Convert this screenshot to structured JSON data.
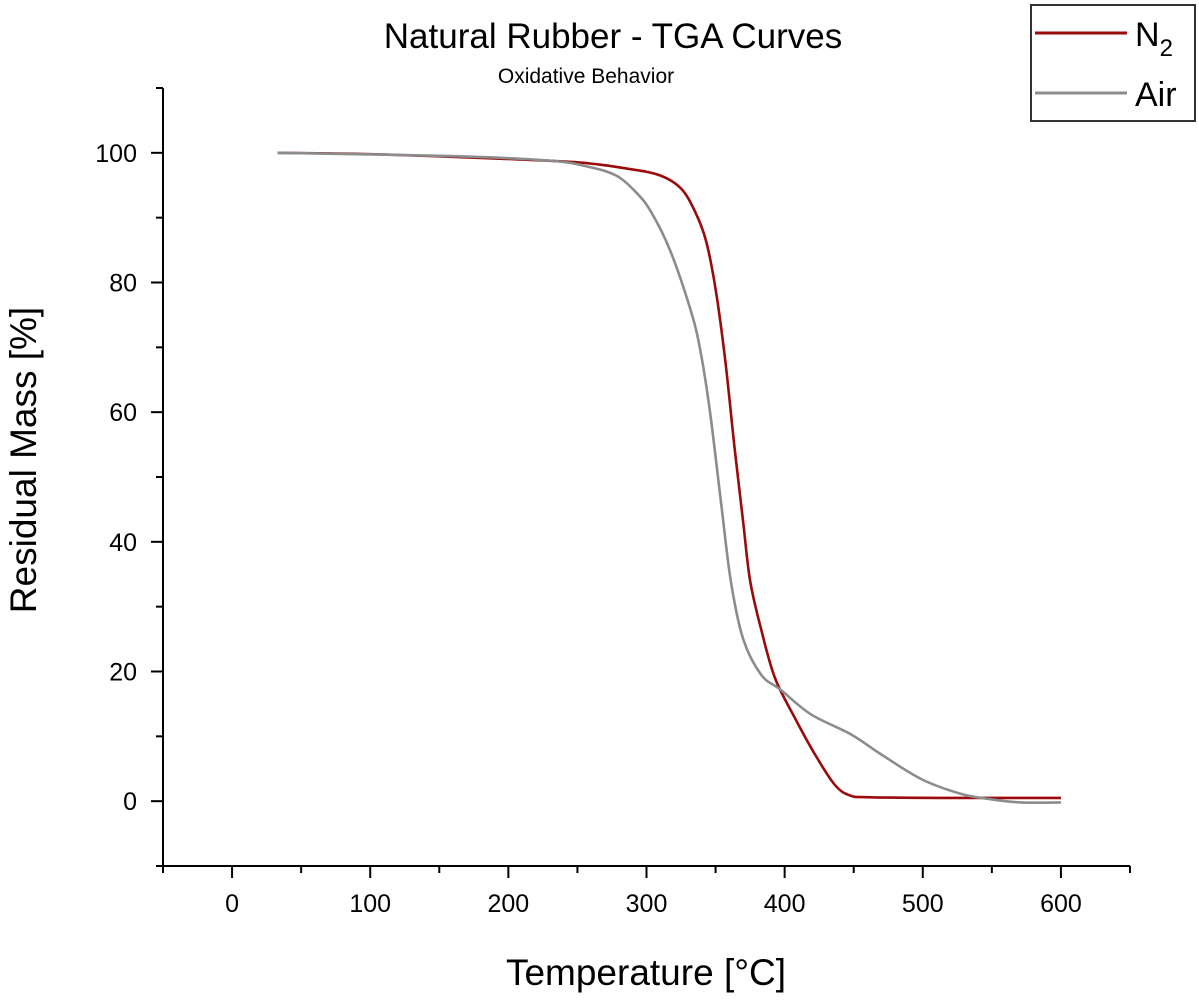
{
  "chart_data": {
    "type": "line",
    "title": "Natural Rubber - TGA Curves",
    "subtitle": "Oxidative Behavior",
    "xlabel": "Temperature [°C]",
    "ylabel": "Residual Mass [%]",
    "xlim": [
      -50,
      650
    ],
    "ylim": [
      -10,
      110
    ],
    "xticks": [
      0,
      100,
      200,
      300,
      400,
      500,
      600
    ],
    "yticks": [
      0,
      20,
      40,
      60,
      80,
      100
    ],
    "grid": false,
    "legend_position": "top-right",
    "series": [
      {
        "name": "N2",
        "label_main": "N",
        "label_sub": "2",
        "color": "#9b0a0a",
        "x": [
          33,
          100,
          194,
          252,
          288,
          310,
          325,
          335,
          343,
          350,
          357,
          364,
          370,
          375,
          383,
          393,
          408,
          422,
          436,
          447,
          462,
          520,
          600
        ],
        "y": [
          100,
          99.8,
          99.1,
          98.5,
          97.5,
          96.5,
          94.5,
          91,
          86.5,
          79,
          68,
          54,
          43,
          34,
          26.5,
          19,
          12.6,
          7.2,
          2.6,
          0.9,
          0.6,
          0.5,
          0.5
        ]
      },
      {
        "name": "Air",
        "label_main": "Air",
        "label_sub": "",
        "color": "#8c8c8c",
        "x": [
          33,
          158,
          230,
          259,
          278,
          292,
          303,
          317,
          332,
          339,
          346,
          354,
          361,
          370,
          383,
          397,
          419,
          448,
          470,
          499,
          528,
          549,
          571,
          600
        ],
        "y": [
          100,
          99.5,
          98.8,
          97.8,
          96.5,
          94,
          91,
          85,
          75.7,
          69.5,
          60,
          46,
          34,
          25,
          19.5,
          17.2,
          13.4,
          10.3,
          7.2,
          3.4,
          1.1,
          0.3,
          -0.2,
          -0.2
        ]
      }
    ]
  }
}
